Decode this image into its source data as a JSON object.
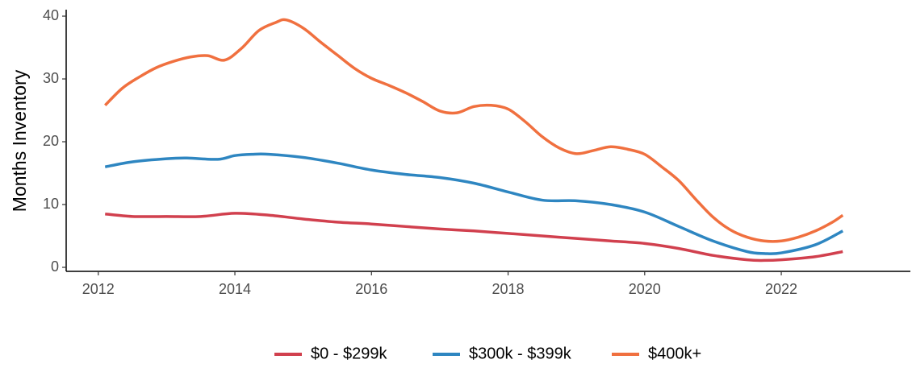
{
  "chart_data": {
    "type": "line",
    "y_label": "Months Inventory",
    "xlim": [
      2011.53,
      2023.89
    ],
    "xticks": [
      2012,
      2014,
      2016,
      2018,
      2020,
      2022
    ],
    "ylim": [
      -0.64,
      41.03
    ],
    "yticks": [
      0,
      10,
      20,
      30,
      40
    ],
    "grid": false,
    "legend": "bottom",
    "series": [
      {
        "name": "$0 - $299k",
        "color": "#d1404e",
        "x": [
          2012.1,
          2012.5,
          2013,
          2013.5,
          2014,
          2014.5,
          2015,
          2015.5,
          2016,
          2016.5,
          2017,
          2017.5,
          2018,
          2018.5,
          2019,
          2019.5,
          2020,
          2020.5,
          2021,
          2021.5,
          2021.75,
          2022,
          2022.5,
          2022.9
        ],
        "values": [
          8.5,
          8.1,
          8.1,
          8.1,
          8.6,
          8.3,
          7.7,
          7.2,
          6.9,
          6.5,
          6.1,
          5.8,
          5.4,
          5.0,
          4.6,
          4.2,
          3.8,
          3.0,
          1.9,
          1.2,
          1.1,
          1.2,
          1.7,
          2.5
        ]
      },
      {
        "name": "$300k - $399k",
        "color": "#2e86c1",
        "x": [
          2012.1,
          2012.5,
          2013,
          2013.3,
          2013.75,
          2014,
          2014.25,
          2014.5,
          2015,
          2015.5,
          2016,
          2016.5,
          2017,
          2017.5,
          2018,
          2018.5,
          2019,
          2019.5,
          2020,
          2020.5,
          2021,
          2021.5,
          2021.75,
          2022,
          2022.5,
          2022.9
        ],
        "values": [
          16.0,
          16.8,
          17.3,
          17.4,
          17.2,
          17.8,
          18.0,
          18.0,
          17.5,
          16.6,
          15.5,
          14.8,
          14.3,
          13.4,
          12.0,
          10.7,
          10.6,
          10.0,
          8.8,
          6.5,
          4.2,
          2.5,
          2.2,
          2.3,
          3.6,
          5.8
        ]
      },
      {
        "name": "$400k+",
        "color": "#f0703f",
        "x": [
          2012.1,
          2012.35,
          2012.6,
          2012.85,
          2013.1,
          2013.35,
          2013.6,
          2013.85,
          2014.1,
          2014.35,
          2014.6,
          2014.75,
          2015,
          2015.25,
          2015.5,
          2015.75,
          2016,
          2016.25,
          2016.5,
          2016.75,
          2017,
          2017.25,
          2017.5,
          2017.75,
          2018,
          2018.25,
          2018.5,
          2018.75,
          2019,
          2019.25,
          2019.5,
          2019.75,
          2020,
          2020.25,
          2020.5,
          2020.75,
          2021,
          2021.25,
          2021.5,
          2021.75,
          2022,
          2022.25,
          2022.5,
          2022.75,
          2022.9
        ],
        "values": [
          25.8,
          28.5,
          30.3,
          31.8,
          32.8,
          33.5,
          33.7,
          33.0,
          34.9,
          37.7,
          39.0,
          39.4,
          38.1,
          35.9,
          33.8,
          31.7,
          30.1,
          29.0,
          27.8,
          26.4,
          24.9,
          24.6,
          25.6,
          25.8,
          25.2,
          23.2,
          20.8,
          19.0,
          18.1,
          18.6,
          19.2,
          18.8,
          18.0,
          16.0,
          13.8,
          10.8,
          8.0,
          6.0,
          4.8,
          4.2,
          4.2,
          4.8,
          5.8,
          7.2,
          8.3
        ]
      }
    ]
  }
}
